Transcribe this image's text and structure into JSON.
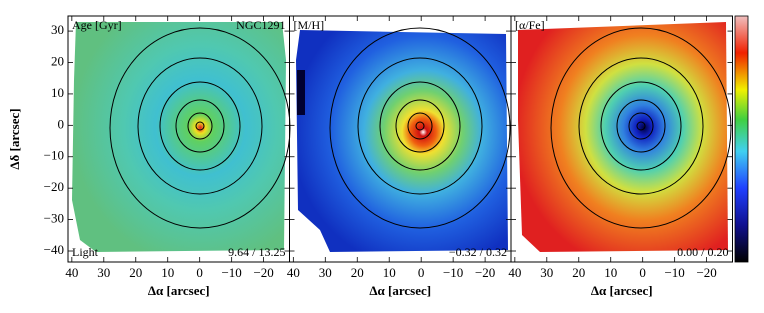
{
  "chart_data": [
    {
      "type": "map",
      "title": "Age [Gyr]",
      "annotation": "NGC1291",
      "corner_label": "Light",
      "range_label": "9.64 / 13.25",
      "xlabel": "Δα [arcsec]",
      "ylabel": "Δδ [arcsec]",
      "xlim": [
        41.2,
        -28.1
      ],
      "ylim": [
        -43.5,
        34.8
      ],
      "xticks": [
        40,
        30,
        20,
        10,
        0,
        {
          "value": -10,
          "label": "−10"
        },
        {
          "value": -20,
          "label": "−20"
        }
      ],
      "yticks": [
        {
          "value": -40,
          "label": "−40"
        },
        {
          "value": -30,
          "label": "−30"
        },
        {
          "value": -20,
          "label": "−20"
        },
        {
          "value": -10,
          "label": "−10"
        },
        0,
        10,
        20,
        30
      ]
    },
    {
      "type": "map",
      "title": "[M/H]",
      "range_label": "−0.32 / 0.32",
      "xlabel": "Δα [arcsec]",
      "xlim": [
        41.2,
        -28.1
      ],
      "ylim": [
        -43.5,
        34.8
      ],
      "xticks": [
        40,
        30,
        20,
        10,
        0,
        {
          "value": -10,
          "label": "−10"
        },
        {
          "value": -20,
          "label": "−20"
        }
      ],
      "yticks": [
        -40,
        -30,
        -20,
        -10,
        0,
        10,
        20,
        30
      ]
    },
    {
      "type": "map",
      "title": "[α/Fe]",
      "range_label": "0.00 / 0.20",
      "xlabel": "Δα [arcsec]",
      "xlim": [
        41.2,
        -28.1
      ],
      "ylim": [
        -43.5,
        34.8
      ],
      "xticks": [
        40,
        30,
        20,
        10,
        0,
        {
          "value": -10,
          "label": "−10"
        },
        {
          "value": -20,
          "label": "−20"
        }
      ],
      "yticks": [
        -40,
        -30,
        -20,
        -10,
        0,
        10,
        20,
        30
      ]
    }
  ]
}
